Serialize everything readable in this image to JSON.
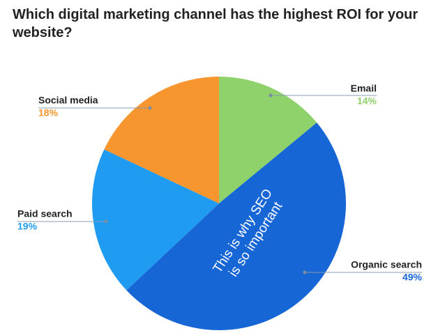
{
  "chart_data": {
    "type": "pie",
    "title": "Which digital marketing channel has the highest ROI for your website?",
    "categories": [
      "Email",
      "Organic search",
      "Paid search",
      "Social media"
    ],
    "values": [
      14,
      49,
      19,
      18
    ],
    "value_labels": [
      "14%",
      "49%",
      "19%",
      "18%"
    ],
    "colors": [
      "#8fd16a",
      "#1766d6",
      "#1f9cf2",
      "#f7962e"
    ],
    "annotations": [
      "This is why SEO",
      "is so important"
    ]
  }
}
